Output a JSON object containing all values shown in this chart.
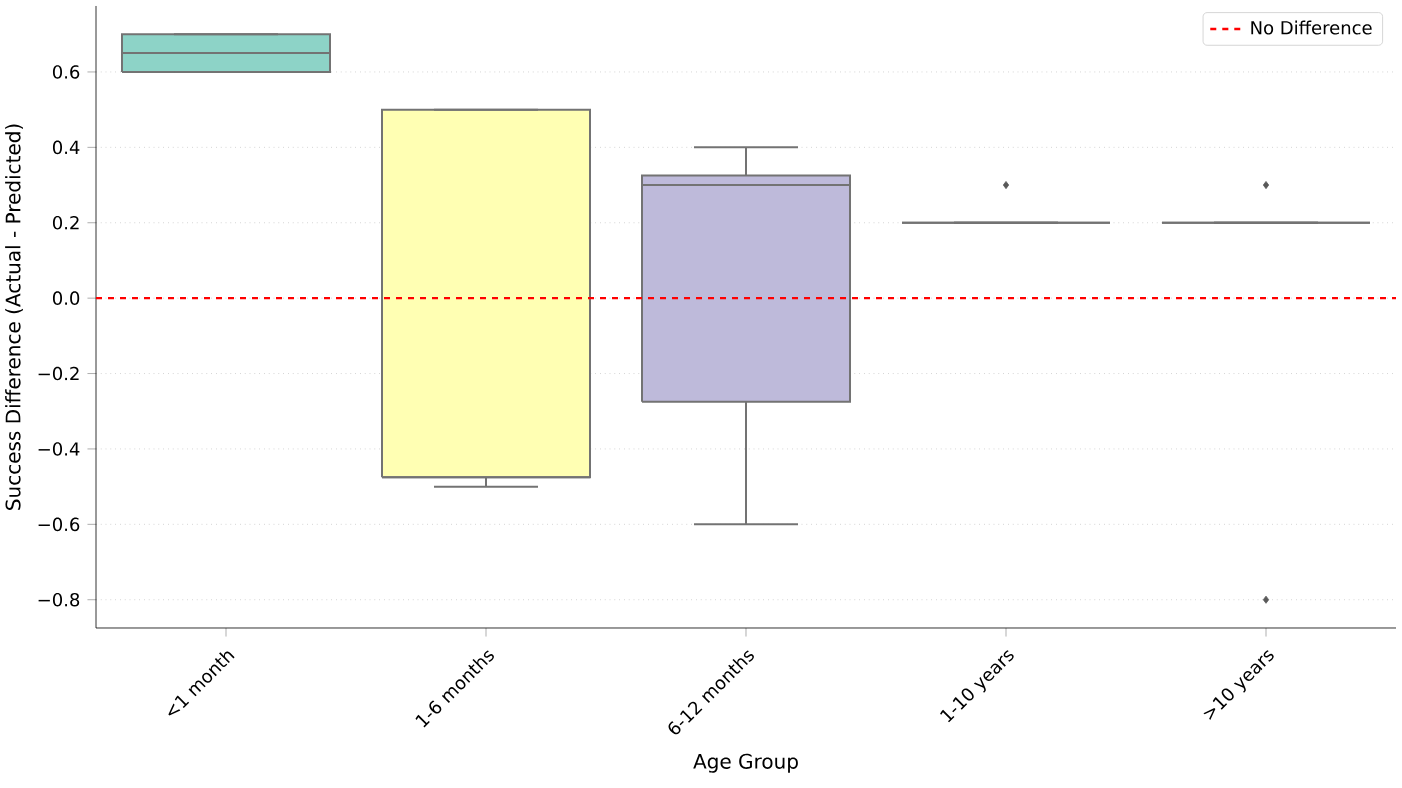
{
  "chart_data": {
    "type": "box",
    "xlabel": "Age Group",
    "ylabel": "Success Difference (Actual - Predicted)",
    "categories": [
      "<1 month",
      "1-6 months",
      "6-12 months",
      "1-10 years",
      ">10 years"
    ],
    "boxes": [
      {
        "low": 0.6,
        "q1": 0.6,
        "median": 0.65,
        "q3": 0.7,
        "high": 0.7
      },
      {
        "low": -0.5,
        "q1": -0.475,
        "median": -0.475,
        "q3": 0.5,
        "high": 0.5
      },
      {
        "low": -0.6,
        "q1": -0.275,
        "median": 0.3,
        "q3": 0.325,
        "high": 0.4
      },
      {
        "low": 0.2,
        "q1": 0.2,
        "median": 0.2,
        "q3": 0.2,
        "high": 0.2,
        "outliers": [
          0.3
        ]
      },
      {
        "low": 0.2,
        "q1": 0.2,
        "median": 0.2,
        "q3": 0.2,
        "high": 0.2,
        "outliers": [
          0.3,
          -0.8
        ]
      }
    ],
    "colors": [
      "#8dd3c7",
      "#ffffb3",
      "#bebada",
      "#737373",
      "#737373"
    ],
    "ylim": [
      -0.875,
      0.775
    ],
    "yticks": [
      {
        "value": -0.8,
        "label": "−0.8"
      },
      {
        "value": -0.6,
        "label": "−0.6"
      },
      {
        "value": -0.4,
        "label": "−0.4"
      },
      {
        "value": -0.2,
        "label": "−0.2"
      },
      {
        "value": 0,
        "label": "0.0"
      },
      0.2,
      0.4,
      0.6
    ],
    "ref_lines": [
      {
        "axis": "y",
        "value": 0,
        "label": "No Difference",
        "color": "#ff0000",
        "line_style": "dashed"
      }
    ],
    "grid": "y",
    "legend": "top right",
    "marker": "diamond"
  }
}
